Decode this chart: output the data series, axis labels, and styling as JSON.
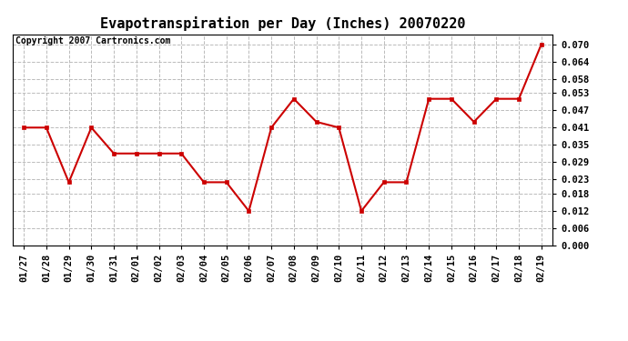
{
  "title": "Evapotranspiration per Day (Inches) 20070220",
  "copyright_text": "Copyright 2007 Cartronics.com",
  "x_labels": [
    "01/27",
    "01/28",
    "01/29",
    "01/30",
    "01/31",
    "02/01",
    "02/02",
    "02/03",
    "02/04",
    "02/05",
    "02/06",
    "02/07",
    "02/08",
    "02/09",
    "02/10",
    "02/11",
    "02/12",
    "02/13",
    "02/14",
    "02/15",
    "02/16",
    "02/17",
    "02/18",
    "02/19"
  ],
  "y_values": [
    0.041,
    0.041,
    0.022,
    0.041,
    0.032,
    0.032,
    0.032,
    0.032,
    0.022,
    0.022,
    0.012,
    0.041,
    0.051,
    0.043,
    0.041,
    0.012,
    0.022,
    0.022,
    0.051,
    0.051,
    0.043,
    0.051,
    0.051,
    0.07
  ],
  "line_color": "#cc0000",
  "marker": "s",
  "marker_size": 3,
  "ylim": [
    0.0,
    0.0735
  ],
  "yticks": [
    0.0,
    0.006,
    0.012,
    0.018,
    0.023,
    0.029,
    0.035,
    0.041,
    0.047,
    0.053,
    0.058,
    0.064,
    0.07
  ],
  "background_color": "#ffffff",
  "grid_color": "#bbbbbb",
  "title_fontsize": 11,
  "copyright_fontsize": 7,
  "tick_fontsize": 7.5
}
